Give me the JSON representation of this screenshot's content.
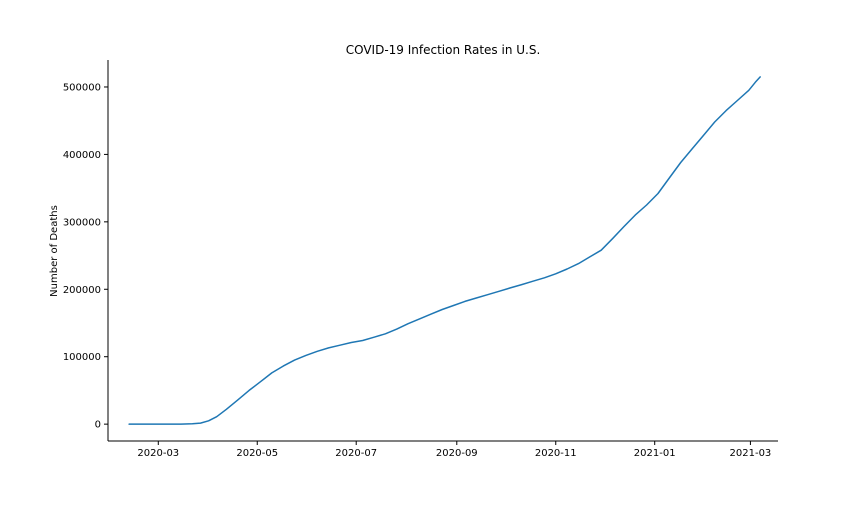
{
  "chart_data": {
    "type": "line",
    "title": "COVID-19 Infection Rates in U.S.",
    "xlabel": "",
    "ylabel": "Number of Deaths",
    "grid": false,
    "legend": "none",
    "colors": {
      "line": "#1f77b4",
      "axis": "#000000"
    },
    "xlim": [
      "2020-01-30",
      "2021-03-18"
    ],
    "ylim": [
      -25000,
      540000
    ],
    "x_ticks": [
      "2020-03",
      "2020-05",
      "2020-07",
      "2020-09",
      "2020-11",
      "2021-01",
      "2021-03"
    ],
    "y_ticks": [
      "0",
      "100000",
      "200000",
      "300000",
      "400000",
      "500000"
    ],
    "series": [
      {
        "x": [
          "2020-02-12",
          "2020-03-01",
          "2020-03-15",
          "2020-03-22",
          "2020-03-27",
          "2020-04-01",
          "2020-04-06",
          "2020-04-12",
          "2020-04-19",
          "2020-04-26",
          "2020-05-03",
          "2020-05-10",
          "2020-05-17",
          "2020-05-24",
          "2020-05-31",
          "2020-06-07",
          "2020-06-14",
          "2020-06-21",
          "2020-06-28",
          "2020-07-05",
          "2020-07-12",
          "2020-07-19",
          "2020-07-26",
          "2020-08-02",
          "2020-08-09",
          "2020-08-16",
          "2020-08-23",
          "2020-08-30",
          "2020-09-06",
          "2020-09-13",
          "2020-09-20",
          "2020-09-27",
          "2020-10-04",
          "2020-10-11",
          "2020-10-18",
          "2020-10-25",
          "2020-11-01",
          "2020-11-08",
          "2020-11-15",
          "2020-11-22",
          "2020-11-29",
          "2020-12-06",
          "2020-12-13",
          "2020-12-20",
          "2020-12-27",
          "2021-01-03",
          "2021-01-10",
          "2021-01-17",
          "2021-01-24",
          "2021-01-31",
          "2021-02-07",
          "2021-02-14",
          "2021-02-21",
          "2021-02-28",
          "2021-03-04",
          "2021-03-07"
        ],
        "y": [
          0,
          0,
          100,
          500,
          1500,
          5000,
          11000,
          22000,
          36000,
          50000,
          63000,
          76000,
          86000,
          95000,
          102000,
          108000,
          113000,
          117000,
          121000,
          124000,
          129000,
          134000,
          141000,
          149000,
          156000,
          163000,
          170000,
          176000,
          182000,
          187000,
          192000,
          197000,
          202000,
          207000,
          212000,
          217000,
          223000,
          230000,
          238000,
          248000,
          258000,
          275000,
          293000,
          310000,
          325000,
          342000,
          365000,
          388000,
          408000,
          428000,
          448000,
          465000,
          480000,
          495000,
          507000,
          515000
        ]
      }
    ]
  }
}
